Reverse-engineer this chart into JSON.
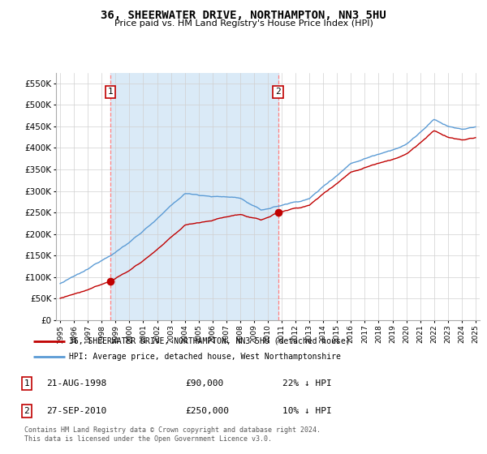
{
  "title": "36, SHEERWATER DRIVE, NORTHAMPTON, NN3 5HU",
  "subtitle": "Price paid vs. HM Land Registry's House Price Index (HPI)",
  "legend_line1": "36, SHEERWATER DRIVE, NORTHAMPTON, NN3 5HU (detached house)",
  "legend_line2": "HPI: Average price, detached house, West Northamptonshire",
  "footnote": "Contains HM Land Registry data © Crown copyright and database right 2024.\nThis data is licensed under the Open Government Licence v3.0.",
  "table": [
    {
      "num": "1",
      "date": "21-AUG-1998",
      "price": "£90,000",
      "hpi": "22% ↓ HPI"
    },
    {
      "num": "2",
      "date": "27-SEP-2010",
      "price": "£250,000",
      "hpi": "10% ↓ HPI"
    }
  ],
  "sale1_year": 1998.64,
  "sale1_price": 90000,
  "sale2_year": 2010.74,
  "sale2_price": 250000,
  "hpi_color": "#5b9bd5",
  "hpi_fill_color": "#daeaf7",
  "price_color": "#c00000",
  "vline_color": "#ff8080",
  "background_color": "#ffffff",
  "grid_color": "#d0d0d0",
  "ylim_max": 575000,
  "ytick_step": 50000
}
